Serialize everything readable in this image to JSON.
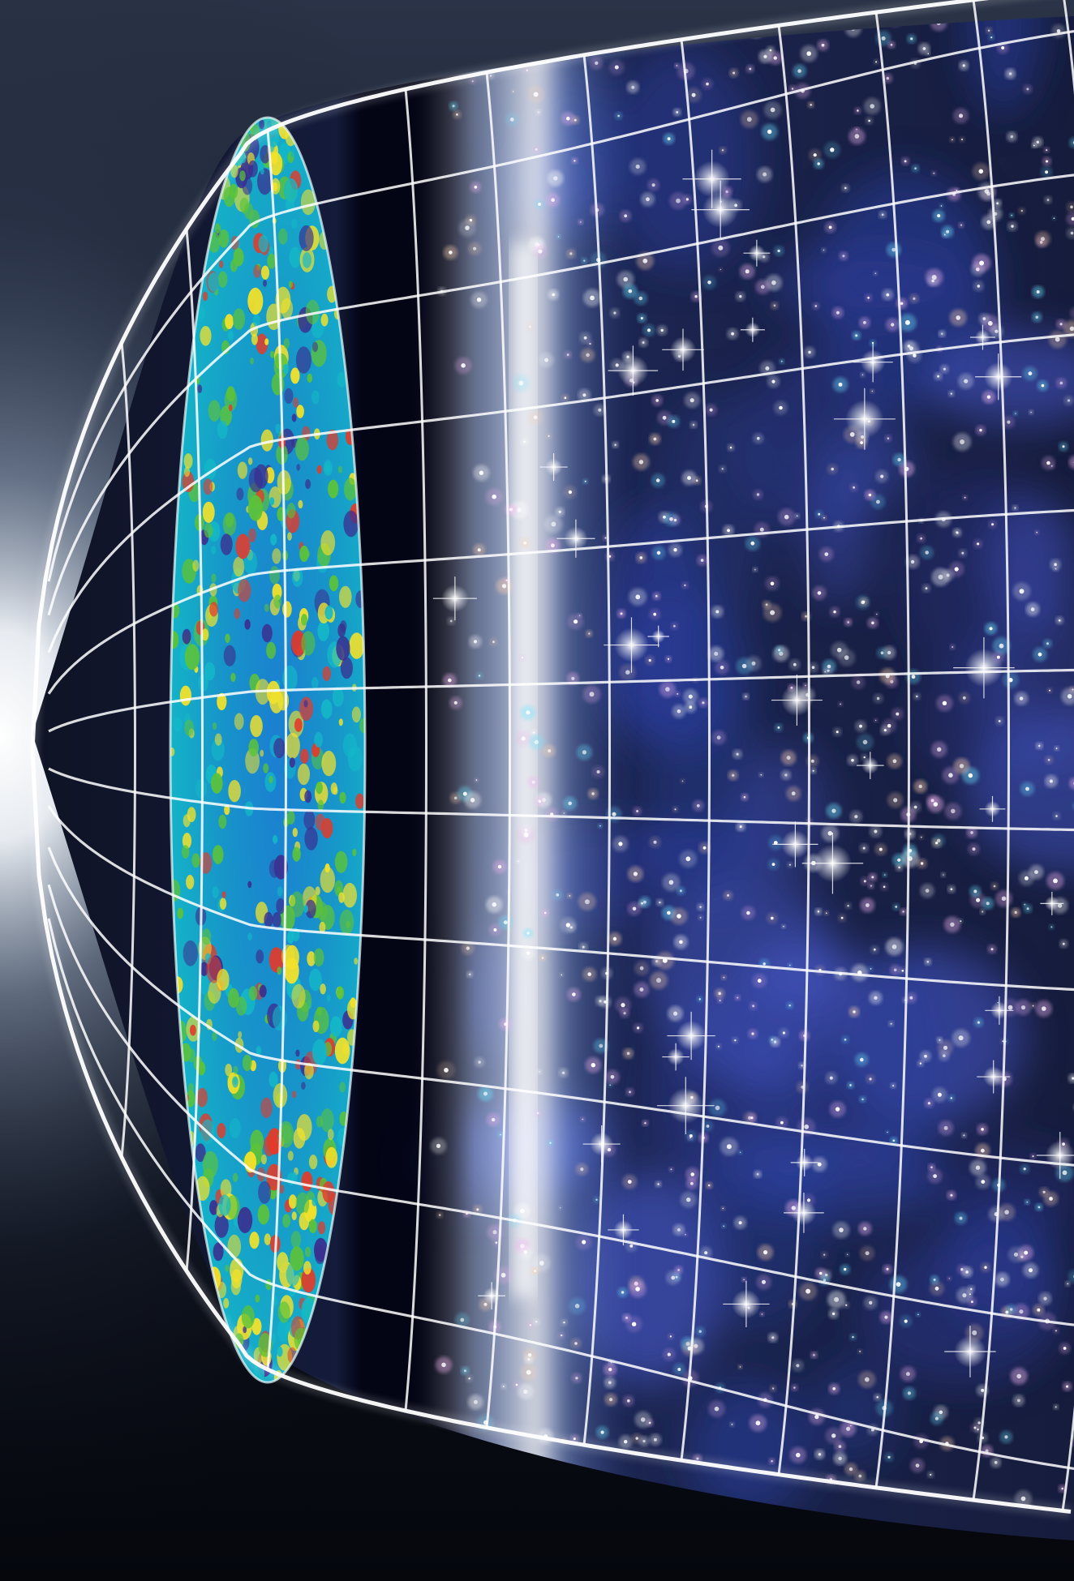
{
  "image": {
    "colors": {
      "background_top": "#2a3347",
      "background_bottom": "#05070d",
      "glow": "#ffffff",
      "grid_line": "#ffffff",
      "cmb_blue": "#1b7fd1",
      "cmb_cyan": "#14b8c8",
      "cmb_green": "#5cc23a",
      "cmb_yellow": "#f2e12b",
      "cmb_red": "#e23b2a",
      "cmb_purple": "#3a2f8f",
      "star_white": "#ffffff",
      "star_pink": "#f2b6f0",
      "star_cyan": "#6fe6ff",
      "star_peach": "#ffd2b0",
      "nebula_blue": "#2b3f9e"
    }
  }
}
